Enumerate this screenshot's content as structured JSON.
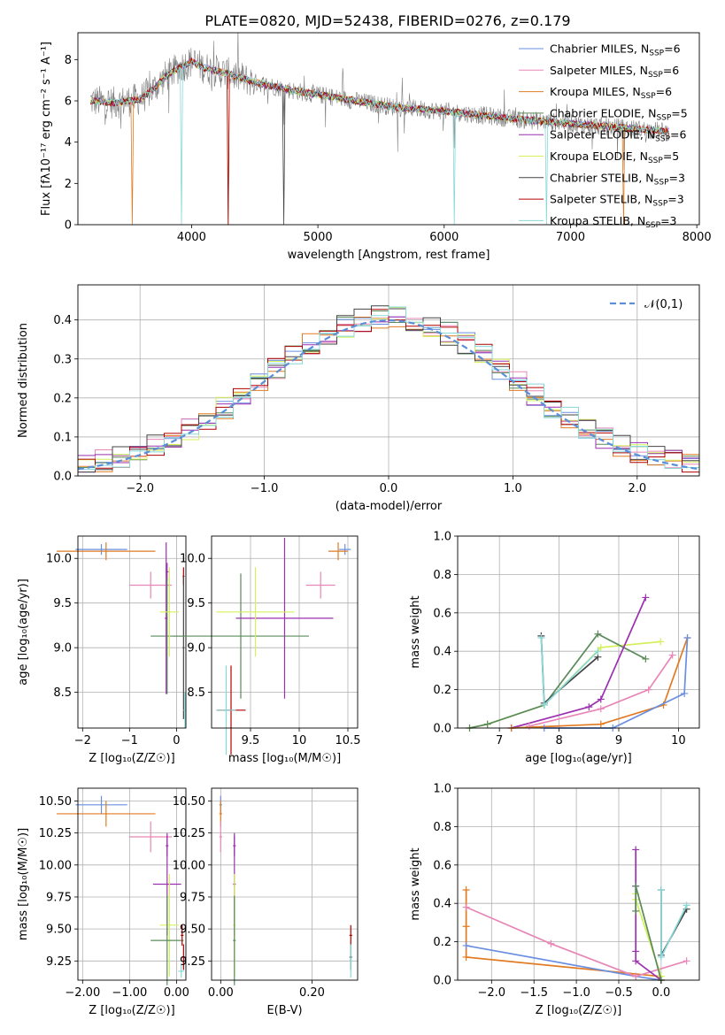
{
  "title": "PLATE=0820, MJD=52438, FIBERID=0276, z=0.179",
  "colors": {
    "chabrier_miles": "#6a8fe0",
    "salpeter_miles": "#e887b7",
    "kroupa_miles": "#e07b24",
    "chabrier_elodie": "#5b8a5b",
    "salpeter_elodie": "#9b30b0",
    "kroupa_elodie": "#d4f05a",
    "chabrier_stelib": "#444444",
    "salpeter_stelib": "#b00000",
    "kroupa_stelib": "#88d8d8",
    "data": "#808080",
    "grid": "#b0b0b0"
  },
  "chart_data": [
    {
      "id": "spectrum",
      "type": "line",
      "xlabel": "wavelength [Angstrom, rest frame]",
      "ylabel": "Flux [fλ10⁻¹⁷ erg cm⁻² s⁻¹ A⁻¹]",
      "xlim": [
        3100,
        8020
      ],
      "ylim": [
        0,
        9.3
      ],
      "xticks": [
        4000,
        5000,
        6000,
        7000,
        8000
      ],
      "yticks": [
        0,
        2,
        4,
        6,
        8
      ],
      "grid": false,
      "legend_position": "top-right",
      "legend": [
        "Chabrier MILES, N_SSP=6",
        "Salpeter MILES, N_SSP=6",
        "Kroupa MILES, N_SSP=6",
        "Chabrier ELODIE, N_SSP=5",
        "Salpeter ELODIE, N_SSP=6",
        "Kroupa ELODIE, N_SSP=5",
        "Chabrier STELIB, N_SSP=3",
        "Salpeter STELIB, N_SSP=3",
        "Kroupa STELIB, N_SSP=3"
      ],
      "continuum": {
        "x": [
          3200,
          3400,
          3600,
          3700,
          3800,
          3900,
          4000,
          4100,
          4300,
          4500,
          4800,
          5000,
          5300,
          5600,
          6000,
          6300,
          6600,
          7000,
          7400,
          7800
        ],
        "y": [
          6.0,
          5.9,
          6.1,
          6.6,
          7.2,
          7.6,
          7.9,
          7.6,
          7.3,
          6.9,
          6.5,
          6.3,
          6.0,
          5.7,
          5.5,
          5.3,
          5.1,
          4.9,
          4.7,
          4.5
        ]
      }
    },
    {
      "id": "residuals",
      "type": "step",
      "xlabel": "(data-model)/error",
      "ylabel": "Normed distribution",
      "xlim": [
        -2.5,
        2.5
      ],
      "ylim": [
        0,
        0.49
      ],
      "xticks": [
        -2,
        -1,
        0,
        1,
        2
      ],
      "yticks": [
        0.0,
        0.1,
        0.2,
        0.3,
        0.4
      ],
      "grid": true,
      "legend_position": "top-right",
      "legend": [
        "𝒩(0,1)"
      ]
    },
    {
      "id": "age_vs_Z",
      "type": "errorbar",
      "xlabel": "Z [log₁₀(Z/Z☉)]",
      "ylabel": "age [log₁₀(age/yr)]",
      "xlim": [
        -2.1,
        0.2
      ],
      "ylim": [
        8.1,
        10.25
      ],
      "xticks": [
        -2,
        -1,
        0
      ],
      "yticks": [
        8.5,
        9.0,
        9.5,
        10.0
      ],
      "grid": true,
      "points": [
        {
          "x": -1.6,
          "xerr": 0.55,
          "y": 10.1,
          "yerr": 0.06,
          "c": "chabrier_miles"
        },
        {
          "x": -1.5,
          "xerr": 1.05,
          "y": 10.08,
          "yerr": 0.1,
          "c": "kroupa_miles"
        },
        {
          "x": -0.55,
          "xerr": 0.45,
          "y": 9.7,
          "yerr": 0.15,
          "c": "salpeter_miles"
        },
        {
          "x": -0.2,
          "xerr": 0.03,
          "y": 9.85,
          "yerr": 0.1,
          "c": "salpeter_elodie"
        },
        {
          "x": -0.2,
          "xerr": 0.35,
          "y": 9.13,
          "yerr": 0.65,
          "c": "chabrier_elodie"
        },
        {
          "x": -0.22,
          "xerr": 0.03,
          "y": 9.33,
          "yerr": 0.85,
          "c": "salpeter_elodie"
        },
        {
          "x": -0.15,
          "xerr": 0.2,
          "y": 9.4,
          "yerr": 0.5,
          "c": "kroupa_elodie"
        },
        {
          "x": 0.15,
          "xerr": 0.02,
          "y": 9.8,
          "yerr": 0.1,
          "c": "salpeter_stelib"
        },
        {
          "x": 0.15,
          "xerr": 0.02,
          "y": 9.0,
          "yerr": 0.8,
          "c": "chabrier_stelib"
        },
        {
          "x": 0.18,
          "xerr": 0.03,
          "y": 8.3,
          "yerr": 0.2,
          "c": "kroupa_stelib"
        }
      ]
    },
    {
      "id": "age_vs_mass",
      "type": "errorbar",
      "xlabel": "mass [log₁₀(M/M☉)]",
      "ylabel": "",
      "xlim": [
        9.1,
        10.6
      ],
      "ylim": [
        8.1,
        10.25
      ],
      "xticks": [
        9.5,
        10.0,
        10.5
      ],
      "yticks": [
        8.5,
        9.0,
        9.5,
        10.0
      ],
      "grid": true,
      "points": [
        {
          "x": 10.47,
          "xerr": 0.06,
          "y": 10.1,
          "yerr": 0.06,
          "c": "chabrier_miles"
        },
        {
          "x": 10.4,
          "xerr": 0.1,
          "y": 10.08,
          "yerr": 0.1,
          "c": "kroupa_miles"
        },
        {
          "x": 10.22,
          "xerr": 0.15,
          "y": 9.7,
          "yerr": 0.15,
          "c": "salpeter_miles"
        },
        {
          "x": 9.4,
          "xerr": 0.7,
          "y": 9.13,
          "yerr": 0.7,
          "c": "chabrier_elodie"
        },
        {
          "x": 9.85,
          "xerr": 0.5,
          "y": 9.33,
          "yerr": 0.9,
          "c": "salpeter_elodie"
        },
        {
          "x": 9.55,
          "xerr": 0.4,
          "y": 9.4,
          "yerr": 0.5,
          "c": "kroupa_elodie"
        },
        {
          "x": 9.3,
          "xerr": 0.15,
          "y": 8.3,
          "yerr": 0.5,
          "c": "salpeter_stelib"
        },
        {
          "x": 9.25,
          "xerr": 0.1,
          "y": 8.3,
          "yerr": 0.5,
          "c": "kroupa_stelib"
        }
      ]
    },
    {
      "id": "weight_vs_age",
      "type": "line",
      "xlabel": "age [log₁₀(age/yr)]",
      "ylabel": "mass weight",
      "xlim": [
        6.3,
        10.35
      ],
      "ylim": [
        0,
        1.0
      ],
      "xticks": [
        7,
        8,
        9,
        10
      ],
      "yticks": [
        0.0,
        0.2,
        0.4,
        0.6,
        0.8,
        1.0
      ],
      "grid": true,
      "series": [
        {
          "c": "kroupa_elodie",
          "x": [
            6.5,
            6.8,
            7.75,
            8.7,
            9.7
          ],
          "y": [
            0.0,
            0.02,
            0.12,
            0.42,
            0.45
          ]
        },
        {
          "c": "chabrier_elodie",
          "x": [
            6.5,
            6.8,
            7.75,
            8.65,
            9.45
          ],
          "y": [
            0.0,
            0.02,
            0.12,
            0.49,
            0.36
          ]
        },
        {
          "c": "salpeter_elodie",
          "x": [
            7.2,
            8.5,
            8.7,
            9.45
          ],
          "y": [
            0.0,
            0.11,
            0.15,
            0.68
          ]
        },
        {
          "c": "kroupa_miles",
          "x": [
            7.2,
            8.7,
            9.75,
            10.15
          ],
          "y": [
            0.0,
            0.02,
            0.12,
            0.47
          ]
        },
        {
          "c": "salpeter_miles",
          "x": [
            7.5,
            8.7,
            9.5,
            9.9
          ],
          "y": [
            0.01,
            0.1,
            0.2,
            0.38
          ]
        },
        {
          "c": "chabrier_miles",
          "x": [
            7.75,
            8.9,
            10.1,
            10.15
          ],
          "y": [
            0.0,
            0.0,
            0.18,
            0.47
          ]
        },
        {
          "c": "chabrier_stelib",
          "x": [
            7.7,
            7.75,
            8.65
          ],
          "y": [
            0.48,
            0.13,
            0.37
          ]
        },
        {
          "c": "kroupa_stelib",
          "x": [
            7.7,
            7.75,
            8.65
          ],
          "y": [
            0.47,
            0.12,
            0.4
          ]
        }
      ]
    },
    {
      "id": "mass_vs_Z",
      "type": "errorbar",
      "xlabel": "Z [log₁₀(Z/Z☉)]",
      "ylabel": "mass [log₁₀(M/M☉)]",
      "xlim": [
        -2.1,
        0.2
      ],
      "ylim": [
        9.1,
        10.6
      ],
      "xticks": [
        -2,
        -1,
        0
      ],
      "yticks": [
        9.25,
        9.5,
        9.75,
        10.0,
        10.25,
        10.5
      ],
      "grid": true,
      "points": [
        {
          "x": -1.6,
          "xerr": 0.55,
          "y": 10.47,
          "yerr": 0.07,
          "c": "chabrier_miles"
        },
        {
          "x": -1.5,
          "xerr": 1.05,
          "y": 10.4,
          "yerr": 0.1,
          "c": "kroupa_miles"
        },
        {
          "x": -0.55,
          "xerr": 0.45,
          "y": 10.22,
          "yerr": 0.12,
          "c": "salpeter_miles"
        },
        {
          "x": -0.2,
          "xerr": 0.03,
          "y": 10.15,
          "yerr": 0.08,
          "c": "salpeter_elodie"
        },
        {
          "x": -0.2,
          "xerr": 0.3,
          "y": 9.85,
          "yerr": 0.4,
          "c": "salpeter_elodie"
        },
        {
          "x": -0.15,
          "xerr": 0.2,
          "y": 9.53,
          "yerr": 0.4,
          "c": "kroupa_elodie"
        },
        {
          "x": -0.2,
          "xerr": 0.35,
          "y": 9.41,
          "yerr": 0.35,
          "c": "chabrier_elodie"
        },
        {
          "x": 0.12,
          "xerr": 0.03,
          "y": 9.45,
          "yerr": 0.08,
          "c": "salpeter_stelib"
        },
        {
          "x": 0.15,
          "xerr": 0.04,
          "y": 9.28,
          "yerr": 0.1,
          "c": "salpeter_stelib"
        },
        {
          "x": 0.1,
          "xerr": 0.06,
          "y": 9.17,
          "yerr": 0.05,
          "c": "kroupa_stelib"
        }
      ]
    },
    {
      "id": "mass_vs_ebv",
      "type": "errorbar",
      "xlabel": "E(B-V)",
      "ylabel": "",
      "xlim": [
        -0.02,
        0.3
      ],
      "ylim": [
        9.1,
        10.6
      ],
      "xticks": [
        0.0,
        0.2
      ],
      "yticks": [
        9.25,
        9.5,
        9.75,
        10.0,
        10.25,
        10.5
      ],
      "grid": true,
      "points": [
        {
          "x": 0.0,
          "xerr": 0.003,
          "y": 10.47,
          "yerr": 0.07,
          "c": "chabrier_miles"
        },
        {
          "x": 0.0,
          "xerr": 0.003,
          "y": 10.4,
          "yerr": 0.1,
          "c": "kroupa_miles"
        },
        {
          "x": 0.0,
          "xerr": 0.003,
          "y": 10.22,
          "yerr": 0.12,
          "c": "salpeter_miles"
        },
        {
          "x": 0.03,
          "xerr": 0.003,
          "y": 10.15,
          "yerr": 0.08,
          "c": "salpeter_elodie"
        },
        {
          "x": 0.03,
          "xerr": 0.003,
          "y": 9.85,
          "yerr": 0.4,
          "c": "salpeter_elodie"
        },
        {
          "x": 0.03,
          "xerr": 0.003,
          "y": 9.53,
          "yerr": 0.4,
          "c": "kroupa_elodie"
        },
        {
          "x": 0.03,
          "xerr": 0.003,
          "y": 9.41,
          "yerr": 0.35,
          "c": "chabrier_elodie"
        },
        {
          "x": 0.285,
          "xerr": 0.003,
          "y": 9.45,
          "yerr": 0.08,
          "c": "salpeter_stelib"
        },
        {
          "x": 0.285,
          "xerr": 0.003,
          "y": 9.28,
          "yerr": 0.1,
          "c": "chabrier_stelib"
        },
        {
          "x": 0.285,
          "xerr": 0.003,
          "y": 9.25,
          "yerr": 0.13,
          "c": "kroupa_stelib"
        }
      ]
    },
    {
      "id": "weight_vs_Z",
      "type": "line",
      "xlabel": "Z [log₁₀(Z/Z☉)]",
      "ylabel": "mass weight",
      "xlim": [
        -2.4,
        0.45
      ],
      "ylim": [
        0,
        1.0
      ],
      "xticks": [
        -2.0,
        -1.5,
        -1.0,
        -0.5,
        0.0
      ],
      "yticks": [
        0.0,
        0.2,
        0.4,
        0.6,
        0.8,
        1.0
      ],
      "grid": true,
      "series": [
        {
          "c": "kroupa_miles",
          "x": [
            -2.3,
            -2.3,
            -2.3,
            -0.02,
            0.0
          ],
          "y": [
            0.47,
            0.28,
            0.12,
            0.02,
            0.0
          ]
        },
        {
          "c": "chabrier_miles",
          "x": [
            -2.3,
            -0.3,
            0.0
          ],
          "y": [
            0.18,
            0.02,
            0.0
          ]
        },
        {
          "c": "salpeter_miles",
          "x": [
            -2.3,
            -1.3,
            -0.3,
            0.3
          ],
          "y": [
            0.38,
            0.19,
            0.02,
            0.1
          ]
        },
        {
          "c": "salpeter_elodie",
          "x": [
            -0.3,
            -0.3,
            -0.3,
            -0.3,
            0.0
          ],
          "y": [
            0.68,
            0.49,
            0.15,
            0.1,
            0.0
          ]
        },
        {
          "c": "kroupa_elodie",
          "x": [
            -0.3,
            -0.3,
            0.0,
            0.0
          ],
          "y": [
            0.45,
            0.42,
            0.02,
            0.0
          ]
        },
        {
          "c": "chabrier_elodie",
          "x": [
            -0.3,
            -0.3,
            0.0
          ],
          "y": [
            0.36,
            0.49,
            0.0
          ]
        },
        {
          "c": "chabrier_stelib",
          "x": [
            0.0,
            0.0,
            0.3
          ],
          "y": [
            0.47,
            0.13,
            0.37
          ]
        },
        {
          "c": "kroupa_stelib",
          "x": [
            0.0,
            0.0,
            0.3
          ],
          "y": [
            0.47,
            0.12,
            0.39
          ]
        }
      ]
    }
  ]
}
